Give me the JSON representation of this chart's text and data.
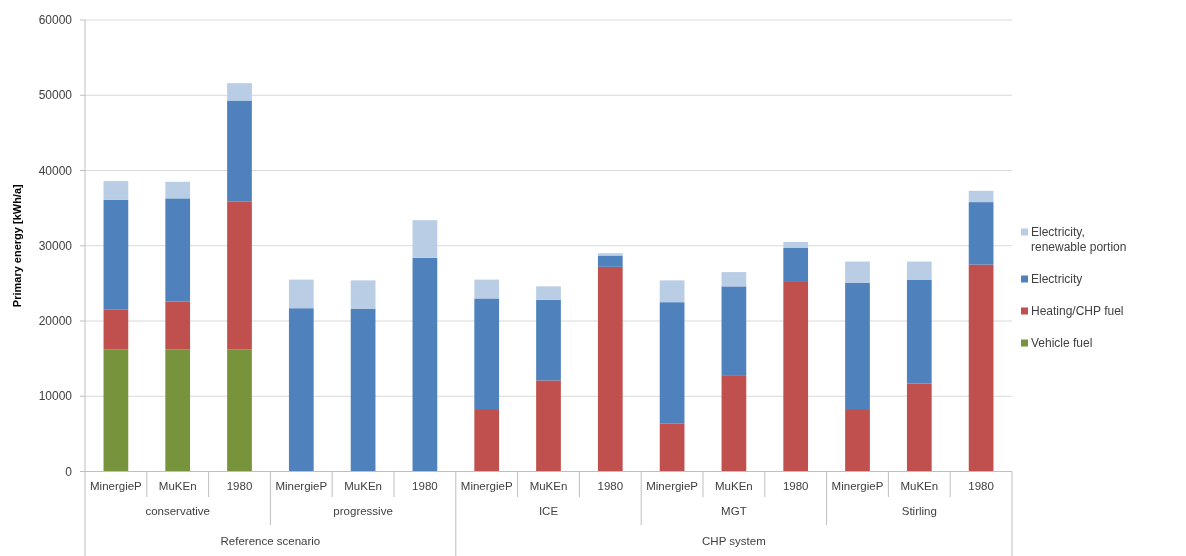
{
  "chart_data": {
    "type": "bar",
    "stacked": true,
    "ylabel": "Primary energy [kWh/a]",
    "categories": [
      "MinergieP",
      "MuKEn",
      "1980",
      "MinergieP",
      "MuKEn",
      "1980",
      "MinergieP",
      "MuKEn",
      "1980",
      "MinergieP",
      "MuKEn",
      "1980",
      "MinergieP",
      "MuKEn",
      "1980"
    ],
    "annotations": [
      "conservative",
      "progressive",
      "ICE",
      "MGT",
      "Stirling",
      "Reference scenario",
      "CHP system"
    ],
    "series": [
      {
        "name": "Vehicle fuel",
        "color": "#77933c",
        "values": [
          16200,
          16200,
          16200,
          null,
          null,
          null,
          null,
          null,
          null,
          null,
          null,
          null,
          null,
          null,
          null
        ]
      },
      {
        "name": "Heating/CHP fuel",
        "color": "#c0504d",
        "values": [
          5300,
          6400,
          19700,
          null,
          null,
          null,
          8300,
          12100,
          27200,
          6400,
          12800,
          25300,
          8300,
          11700,
          27500
        ]
      },
      {
        "name": "Electricity",
        "color": "#4f81bd",
        "values": [
          14600,
          13700,
          13400,
          21700,
          21600,
          28400,
          14700,
          10700,
          1500,
          16100,
          11800,
          4400,
          16800,
          13800,
          8300
        ]
      },
      {
        "name": "Electricity, renewable portion",
        "color": "#b9cde5",
        "values": [
          2500,
          2200,
          2300,
          3800,
          3800,
          5000,
          2500,
          1800,
          300,
          2900,
          1900,
          800,
          2800,
          2400,
          1500
        ]
      }
    ],
    "ylim": [
      0,
      60000
    ],
    "yticks": [
      0,
      10000,
      20000,
      30000,
      40000,
      50000,
      60000
    ],
    "grid": "y",
    "legend": "right"
  }
}
